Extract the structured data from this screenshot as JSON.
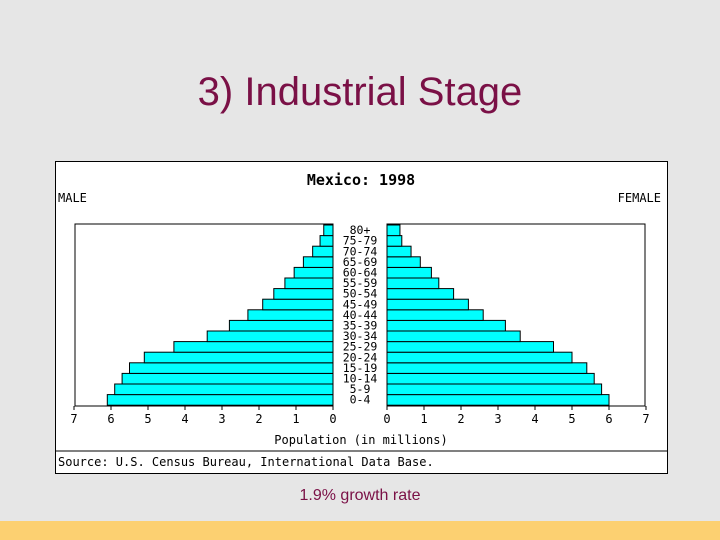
{
  "slide": {
    "title": "3) Industrial Stage",
    "caption": "1.9% growth rate"
  },
  "colors": {
    "title": "#7a1046",
    "bar_fill": "#00ffff",
    "footer": "#fcd071",
    "background": "#e6e6e6"
  },
  "chart_data": {
    "type": "bar",
    "orientation": "horizontal-population-pyramid",
    "title": "Mexico: 1998",
    "left_label": "MALE",
    "right_label": "FEMALE",
    "xlabel": "Population (in millions)",
    "source": "Source: U.S. Census Bureau, International Data Base.",
    "xlim": [
      0,
      7
    ],
    "x_ticks": [
      "7",
      "6",
      "5",
      "4",
      "3",
      "2",
      "1",
      "0",
      "0",
      "1",
      "2",
      "3",
      "4",
      "5",
      "6",
      "7"
    ],
    "categories": [
      "0-4",
      "5-9",
      "10-14",
      "15-19",
      "20-24",
      "25-29",
      "30-34",
      "35-39",
      "40-44",
      "45-49",
      "50-54",
      "55-59",
      "60-64",
      "65-69",
      "70-74",
      "75-79",
      "80+"
    ],
    "series": [
      {
        "name": "MALE",
        "values": [
          6.1,
          5.9,
          5.7,
          5.5,
          5.1,
          4.3,
          3.4,
          2.8,
          2.3,
          1.9,
          1.6,
          1.3,
          1.05,
          0.8,
          0.55,
          0.35,
          0.25
        ]
      },
      {
        "name": "FEMALE",
        "values": [
          6.0,
          5.8,
          5.6,
          5.4,
          5.0,
          4.5,
          3.6,
          3.2,
          2.6,
          2.2,
          1.8,
          1.4,
          1.2,
          0.9,
          0.65,
          0.4,
          0.35
        ]
      }
    ]
  }
}
